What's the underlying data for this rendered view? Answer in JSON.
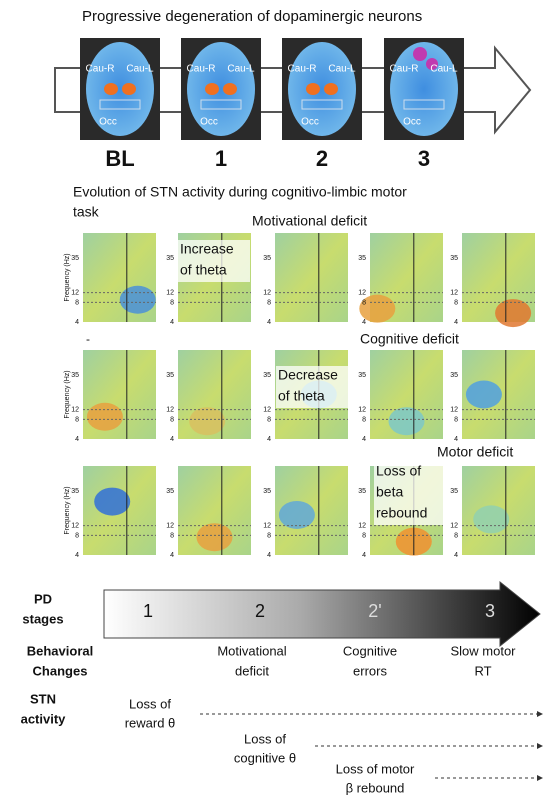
{
  "title": "Progressive degeneration of dopaminergic neurons",
  "scans": [
    {
      "stage": "BL",
      "labels": [
        "Cau-R",
        "Cau-L",
        "Occ"
      ]
    },
    {
      "stage": "1",
      "labels": [
        "Cau-R",
        "Cau-L",
        "Occ"
      ]
    },
    {
      "stage": "2",
      "labels": [
        "Cau-R",
        "Cau-L",
        "Occ"
      ]
    },
    {
      "stage": "3",
      "labels": [
        "Cau-R",
        "Cau-L",
        "Occ"
      ]
    }
  ],
  "subtitle": [
    "Evolution of STN activity during cognitivo-limbic motor",
    "task"
  ],
  "axis_label": "Frequency (Hz)",
  "freq_ticks": [
    "35",
    "12",
    "8",
    "4"
  ],
  "rows": [
    {
      "deficit": "Motivational deficit",
      "note": [
        "Increase",
        "of theta"
      ]
    },
    {
      "marker": "-",
      "deficit": "Cognitive deficit",
      "note": [
        "Decrease",
        "of theta"
      ]
    },
    {
      "deficit": "Motor deficit",
      "note": [
        "Loss of",
        "beta",
        "rebound"
      ]
    }
  ],
  "stages": {
    "label": [
      "PD",
      "stages"
    ],
    "steps": [
      "1",
      "2",
      "2'",
      "3"
    ]
  },
  "behavior": {
    "label": [
      "Behavioral",
      "Changes"
    ],
    "items": [
      [
        "Motivational",
        "deficit"
      ],
      [
        "Cognitive",
        "errors"
      ],
      [
        "Slow motor",
        "RT"
      ]
    ]
  },
  "stn": {
    "label": [
      "STN",
      "activity"
    ],
    "items": [
      [
        "Loss of",
        "reward θ"
      ],
      [
        "Loss of",
        "cognitive θ"
      ],
      [
        "Loss of motor",
        "β rebound"
      ]
    ]
  }
}
